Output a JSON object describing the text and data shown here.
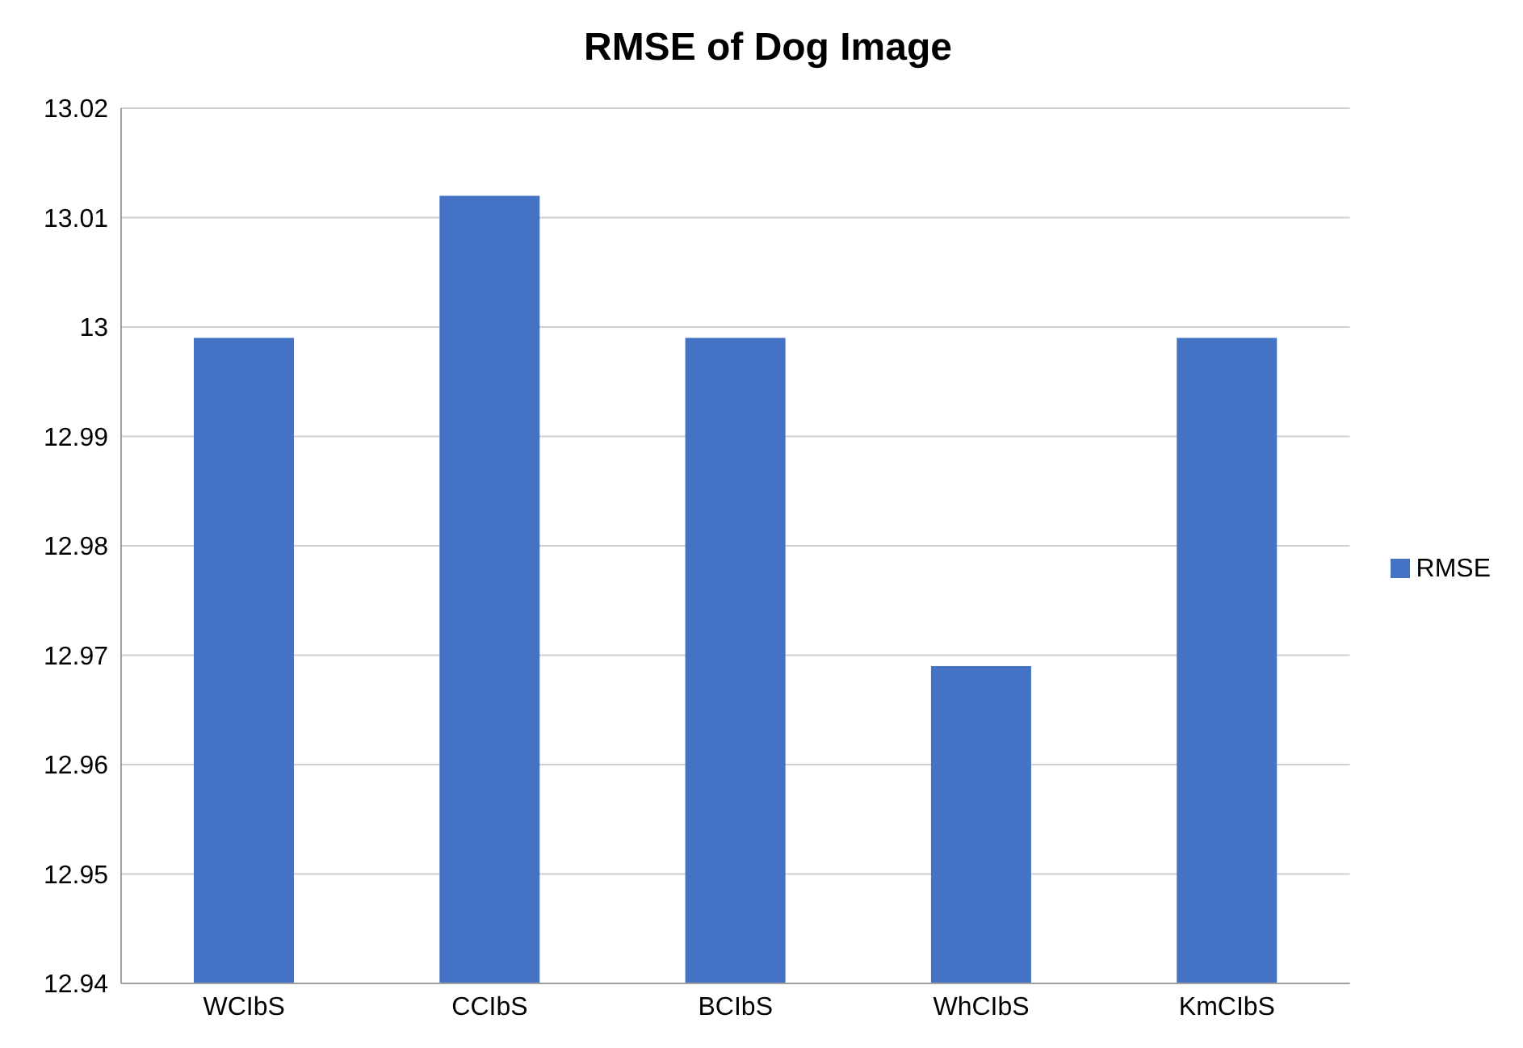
{
  "chart_data": {
    "type": "bar",
    "title": "RMSE of Dog Image",
    "categories": [
      "WCIbS",
      "CCIbS",
      "BCIbS",
      "WhCIbS",
      "KmCIbS"
    ],
    "series": [
      {
        "name": "RMSE",
        "color": "#4472c4",
        "values": [
          12.999,
          13.012,
          12.999,
          12.969,
          12.999
        ]
      }
    ],
    "ylim": [
      12.94,
      13.02
    ],
    "yticks": [
      12.94,
      12.95,
      12.96,
      12.97,
      12.98,
      12.99,
      13,
      13.01,
      13.02
    ],
    "grid": "y",
    "legend": "right"
  }
}
